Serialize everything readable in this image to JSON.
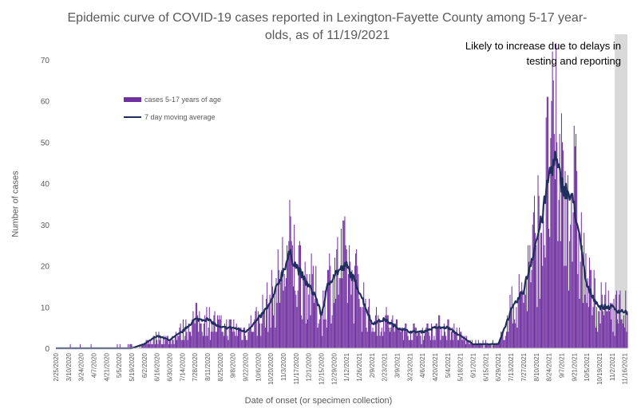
{
  "chart_data": {
    "type": "bar",
    "title_line1": "Epidemic curve of COVID-19 cases reported in Lexington-Fayette County among 5-17 year-",
    "title_line2": "olds, as of 11/19/2021",
    "ylabel": "Number of cases",
    "xlabel": "Date of onset (or specimen collection)",
    "ylim": [
      0,
      70
    ],
    "yticks": [
      0,
      10,
      20,
      30,
      40,
      50,
      60,
      70
    ],
    "legend": {
      "bar_label": "cases 5-17 years of age",
      "line_label": "7 day moving average"
    },
    "annotation": "Likely to increase due to delays in testing and reporting",
    "x_tick_labels": [
      "2/25/2020",
      "3/10/2020",
      "3/24/2020",
      "4/7/2020",
      "4/21/2020",
      "5/5/2020",
      "5/19/2020",
      "6/2/2020",
      "6/16/2020",
      "6/30/2020",
      "7/14/2020",
      "7/28/2020",
      "8/11/2020",
      "8/25/2020",
      "9/8/2020",
      "9/22/2020",
      "10/6/2020",
      "10/20/2020",
      "11/3/2020",
      "11/17/2020",
      "12/1/2020",
      "12/15/2020",
      "12/29/2020",
      "1/12/2021",
      "1/26/2021",
      "2/9/2021",
      "2/23/2021",
      "3/9/2021",
      "3/23/2021",
      "4/6/2021",
      "4/20/2021",
      "5/4/2021",
      "5/18/2021",
      "6/1/2021",
      "6/15/2021",
      "6/29/2021",
      "7/13/2021",
      "7/27/2021",
      "8/10/2021",
      "8/24/2021",
      "9/7/2021",
      "9/21/2021",
      "10/5/2021",
      "10/19/2021",
      "11/2/2021",
      "11/16/2021"
    ],
    "moving_average_anchors": [
      [
        "2/25/2020",
        0
      ],
      [
        "5/19/2020",
        0
      ],
      [
        "6/2/2020",
        1
      ],
      [
        "6/16/2020",
        3
      ],
      [
        "6/30/2020",
        2
      ],
      [
        "7/14/2020",
        4
      ],
      [
        "7/28/2020",
        7
      ],
      [
        "8/11/2020",
        7
      ],
      [
        "8/25/2020",
        5
      ],
      [
        "9/8/2020",
        5
      ],
      [
        "9/22/2020",
        4
      ],
      [
        "10/6/2020",
        7
      ],
      [
        "10/20/2020",
        11
      ],
      [
        "11/3/2020",
        19
      ],
      [
        "11/10/2020",
        23
      ],
      [
        "11/17/2020",
        20
      ],
      [
        "12/1/2020",
        15
      ],
      [
        "12/8/2020",
        13
      ],
      [
        "12/15/2020",
        8
      ],
      [
        "12/22/2020",
        15
      ],
      [
        "12/29/2020",
        18
      ],
      [
        "1/12/2021",
        20
      ],
      [
        "1/26/2021",
        14
      ],
      [
        "2/9/2021",
        6
      ],
      [
        "2/23/2021",
        7
      ],
      [
        "3/9/2021",
        5
      ],
      [
        "3/23/2021",
        4
      ],
      [
        "4/6/2021",
        4
      ],
      [
        "4/20/2021",
        5
      ],
      [
        "5/4/2021",
        5
      ],
      [
        "5/18/2021",
        3
      ],
      [
        "6/1/2021",
        1
      ],
      [
        "6/15/2021",
        1
      ],
      [
        "6/29/2021",
        1
      ],
      [
        "7/13/2021",
        9
      ],
      [
        "7/27/2021",
        14
      ],
      [
        "8/10/2021",
        26
      ],
      [
        "8/17/2021",
        32
      ],
      [
        "8/24/2021",
        42
      ],
      [
        "8/31/2021",
        46
      ],
      [
        "9/7/2021",
        40
      ],
      [
        "9/21/2021",
        35
      ],
      [
        "10/5/2021",
        15
      ],
      [
        "10/19/2021",
        10
      ],
      [
        "11/2/2021",
        10
      ],
      [
        "11/9/2021",
        9
      ],
      [
        "11/16/2021",
        9
      ],
      [
        "11/19/2021",
        8
      ]
    ]
  },
  "colors": {
    "bar": "#7030a0",
    "line": "#1f2f5c",
    "shade": "#d9d9d9",
    "axis": "#bfbfbf",
    "text": "#595959"
  }
}
